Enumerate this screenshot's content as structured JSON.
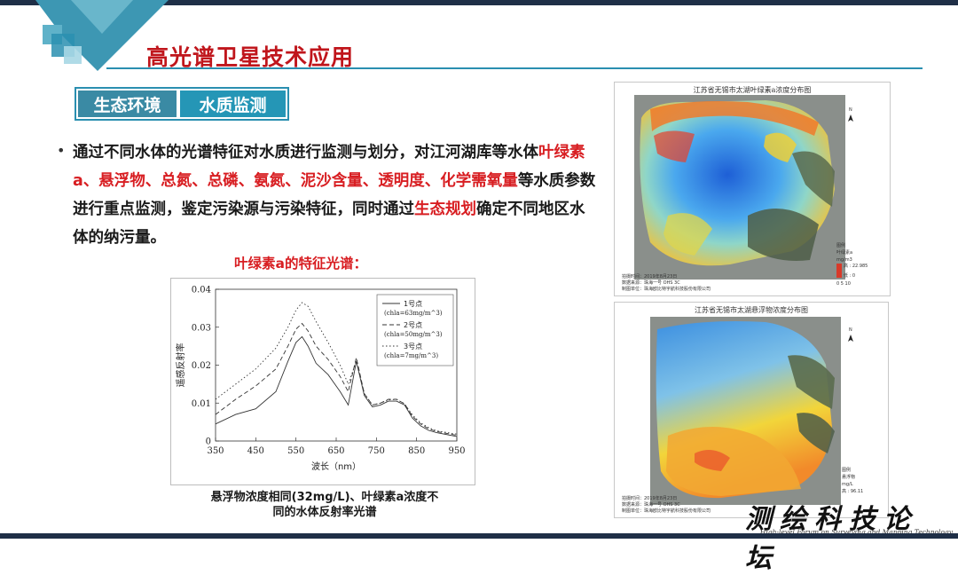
{
  "slide": {
    "title": "高光谱卫星技术应用",
    "tag_category": "生态环境",
    "tag_topic": "水质监测"
  },
  "paragraph": {
    "bullet": "•",
    "segments": [
      {
        "text": "通过不同水体的光谱特征对水质进行监测与划分，对江河湖库等水体",
        "highlight": false
      },
      {
        "text": "叶绿素a、悬浮物、总氮、总磷、氨氮、泥沙含量、透明度、化学需氧量",
        "highlight": true
      },
      {
        "text": "等水质参数进行重点监测，鉴定污染源与污染特征，同时通过",
        "highlight": false
      },
      {
        "text": "生态规划",
        "highlight": true
      },
      {
        "text": "确定不同地区水体的纳污量。",
        "highlight": false
      }
    ]
  },
  "spectrum_title": "叶绿素a的特征光谱：",
  "chart_data": {
    "type": "line",
    "xlabel": "波长（nm）",
    "ylabel": "遥感反射率",
    "xlim": [
      350,
      950
    ],
    "ylim": [
      0,
      0.04
    ],
    "xticks": [
      350,
      450,
      550,
      650,
      750,
      850,
      950
    ],
    "yticks": [
      0,
      0.01,
      0.02,
      0.03,
      0.04
    ],
    "ytick_labels": [
      "0",
      "0.01",
      "0.02",
      "0.03",
      "0.04"
    ],
    "legend_position": "top-right",
    "series": [
      {
        "name": "1号点",
        "note": "(chla=63mg/m^3)",
        "style": "solid",
        "x": [
          350,
          400,
          450,
          500,
          530,
          550,
          565,
          580,
          600,
          630,
          660,
          680,
          700,
          720,
          740,
          760,
          780,
          800,
          820,
          840,
          860,
          880,
          900,
          950
        ],
        "y": [
          0.0045,
          0.007,
          0.0085,
          0.013,
          0.021,
          0.026,
          0.0275,
          0.025,
          0.0205,
          0.0175,
          0.013,
          0.0095,
          0.021,
          0.012,
          0.009,
          0.0095,
          0.0105,
          0.0105,
          0.0095,
          0.006,
          0.004,
          0.0028,
          0.0022,
          0.0012
        ]
      },
      {
        "name": "2号点",
        "note": "(chla=50mg/m^3)",
        "style": "dashed",
        "x": [
          350,
          400,
          450,
          500,
          530,
          550,
          565,
          580,
          600,
          630,
          660,
          680,
          700,
          720,
          740,
          760,
          780,
          800,
          820,
          840,
          860,
          880,
          900,
          950
        ],
        "y": [
          0.007,
          0.011,
          0.0145,
          0.019,
          0.025,
          0.0295,
          0.031,
          0.029,
          0.025,
          0.0215,
          0.017,
          0.013,
          0.022,
          0.0125,
          0.0095,
          0.01,
          0.011,
          0.011,
          0.0098,
          0.0065,
          0.0045,
          0.0032,
          0.0025,
          0.0015
        ]
      },
      {
        "name": "3号点",
        "note": "(chla=7mg/m^3)",
        "style": "dotted",
        "x": [
          350,
          400,
          450,
          500,
          530,
          550,
          565,
          580,
          600,
          630,
          660,
          680,
          700,
          720,
          740,
          760,
          780,
          800,
          820,
          840,
          860,
          880,
          900,
          950
        ],
        "y": [
          0.011,
          0.015,
          0.019,
          0.0245,
          0.03,
          0.0345,
          0.0365,
          0.0355,
          0.0315,
          0.026,
          0.02,
          0.015,
          0.021,
          0.0125,
          0.0095,
          0.01,
          0.0108,
          0.011,
          0.0098,
          0.0068,
          0.0048,
          0.0035,
          0.0027,
          0.0018
        ]
      }
    ]
  },
  "chart_caption_line1": "悬浮物浓度相同(32mg/L)、叶绿素a浓度不",
  "chart_caption_line2": "同的水体反射率光谱",
  "map1": {
    "title": "江苏省无锡市太湖叶绿素a浓度分布图",
    "north": "N",
    "legend_title": "图例",
    "legend_item": "叶绿素a",
    "legend_unit": "mg/m3",
    "legend_high": "高 : 22.985",
    "legend_low": "低 : 0",
    "scale": "0  5  10",
    "footer_line1": "拍摄时间：2019年8月23日",
    "footer_line2": "数据来源：珠海一号 OHS 3C",
    "footer_line3": "制图单位：珠海欧比特宇航科技股份有限公司"
  },
  "map2": {
    "title": "江苏省无锡市太湖悬浮物浓度分布图",
    "north": "N",
    "legend_title": "图例",
    "legend_item": "悬浮物",
    "legend_unit": "mg/L",
    "legend_high": "高 : 96.11",
    "footer_line1": "拍摄时间：2019年8月23日",
    "footer_line2": "数据来源：珠海一号 OHS 3C",
    "footer_line3": "制图单位：珠海欧比特宇航科技股份有限公司"
  },
  "forum": {
    "name_cn": "测绘科技论坛",
    "name_en": "High-level Forum on Surveying and Mapping Technology"
  },
  "colors": {
    "title_red": "#c0161c",
    "accent_teal": "#2a8fb0",
    "highlight_red": "#d81e22",
    "dark_bar": "#1f2f47"
  }
}
